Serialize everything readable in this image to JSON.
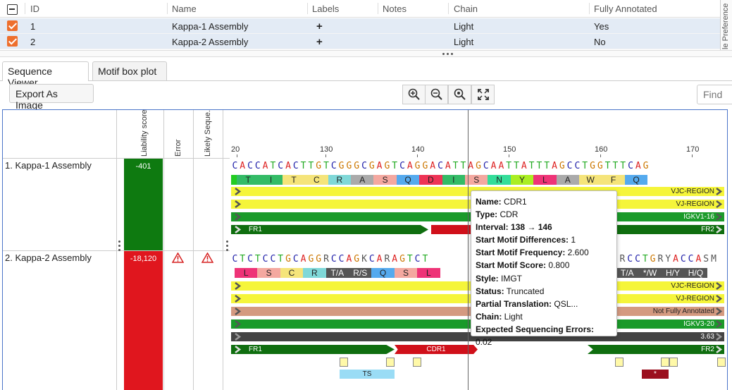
{
  "table": {
    "headers": [
      "ID",
      "Name",
      "Labels",
      "Notes",
      "Chain",
      "Fully Annotated"
    ],
    "rows": [
      {
        "id": "1",
        "name": "Kappa-1 Assembly",
        "labels": "+",
        "notes": "",
        "chain": "Light",
        "fully_annotated": "Yes"
      },
      {
        "id": "2",
        "name": "Kappa-2 Assembly",
        "labels": "+",
        "notes": "",
        "chain": "Light",
        "fully_annotated": "No"
      }
    ]
  },
  "sidebar_label": "le Preference",
  "tabs": [
    {
      "label": "Sequence Viewer",
      "active": true
    },
    {
      "label": "Motif box plot",
      "active": false
    }
  ],
  "toolbar": {
    "export_label": "Export As Image",
    "find_placeholder": "Find",
    "zoom_icons": [
      "zoom-in-icon",
      "zoom-out-icon",
      "zoom-fit-icon",
      "fullscreen-icon"
    ]
  },
  "viewer": {
    "columns": [
      "Liability score",
      "Error",
      "Likely Seque..."
    ],
    "ruler": [
      "20",
      "130",
      "140",
      "150",
      "160",
      "170"
    ],
    "sequences": [
      {
        "name": "1. Kappa-1 Assembly",
        "liability": "-401",
        "liability_color": "#0e7a10",
        "nucleotides": "CACCATCACTTGTCGGGCGAGTCAGGACATTAGCAATTATTTAGCCTGGTTTCAG",
        "aminoacids": [
          {
            "a": "",
            "c": "#22cc22"
          },
          {
            "a": "T",
            "c": "#33bb66"
          },
          {
            "a": "I",
            "c": "#33bb66"
          },
          {
            "a": "T",
            "c": "#f5e47a"
          },
          {
            "a": "C",
            "c": "#f5e47a"
          },
          {
            "a": "R",
            "c": "#7fd8d8"
          },
          {
            "a": "A",
            "c": "#aaaaaa"
          },
          {
            "a": "S",
            "c": "#f4a8a0"
          },
          {
            "a": "Q",
            "c": "#55aaee"
          },
          {
            "a": "D",
            "c": "#ee3355"
          },
          {
            "a": "I",
            "c": "#33bb66"
          },
          {
            "a": "S",
            "c": "#f4a8a0"
          },
          {
            "a": "N",
            "c": "#33dd99"
          },
          {
            "a": "Y",
            "c": "#aaee22"
          },
          {
            "a": "L",
            "c": "#ee3377"
          },
          {
            "a": "A",
            "c": "#aaaaaa"
          },
          {
            "a": "W",
            "c": "#f5e47a"
          },
          {
            "a": "F",
            "c": "#f5e47a"
          },
          {
            "a": "Q",
            "c": "#55aaee"
          }
        ],
        "tracks": [
          {
            "label": "VJC-REGION",
            "color": "#f5f53a",
            "left_label": ""
          },
          {
            "label": "VJ-REGION",
            "color": "#f5f53a",
            "left_label": ""
          },
          {
            "label": "IGKV1-16",
            "color": "#1a9a2a",
            "left_label": ""
          },
          {
            "label": "FR2",
            "color": "#0f6e0f",
            "left_label": "FR1"
          }
        ]
      },
      {
        "name": "2. Kappa-2 Assembly",
        "liability": "-18,120",
        "liability_color": "#e0161e",
        "nucleotides": "CTCTCCTGCAGGRCCAGKCARAGTCT",
        "nucleotides_right": "RCCTGRYACCASM",
        "aminoacids": [
          {
            "a": "L",
            "c": "#ee3377"
          },
          {
            "a": "S",
            "c": "#f4a8a0"
          },
          {
            "a": "C",
            "c": "#f5e47a"
          },
          {
            "a": "R",
            "c": "#7fd8d8"
          },
          {
            "a": "T/A",
            "c": "#555555"
          },
          {
            "a": "R/S",
            "c": "#555555"
          },
          {
            "a": "Q",
            "c": "#55aaee"
          },
          {
            "a": "S",
            "c": "#f4a8a0"
          },
          {
            "a": "L",
            "c": "#ee3377"
          }
        ],
        "aminoacids_right": [
          "T/A",
          "*/W",
          "H/Y",
          "H/Q"
        ],
        "tracks": [
          {
            "label": "VJC-REGION",
            "color": "#f5f53a"
          },
          {
            "label": "VJ-REGION",
            "color": "#f5f53a"
          },
          {
            "label": "Not Fully Annotated",
            "color": "#d49a80"
          },
          {
            "label": "IGKV3-20",
            "color": "#1a9a2a"
          },
          {
            "label": "3.63",
            "color": "#444444"
          }
        ],
        "regions": {
          "fr1": "FR1",
          "cdr1": "CDR1",
          "fr2": "FR2"
        },
        "ts_label": "TS",
        "stop_label": "*"
      }
    ],
    "tooltip": [
      {
        "k": "Name:",
        "v": " CDR1"
      },
      {
        "k": "Type:",
        "v": " CDR"
      },
      {
        "k": "Interval:",
        "v": " 138 → 146",
        "bold_v": true
      },
      {
        "k": "Start Motif Differences:",
        "v": " 1"
      },
      {
        "k": "Start Motif Frequency:",
        "v": " 2.600"
      },
      {
        "k": "Start Motif Score:",
        "v": " 0.800"
      },
      {
        "k": "Style:",
        "v": " IMGT"
      },
      {
        "k": "Status:",
        "v": " Truncated"
      },
      {
        "k": "Partial Translation:",
        "v": " QSL..."
      },
      {
        "k": "Chain:",
        "v": " Light"
      },
      {
        "k": "Expected Sequencing Errors:",
        "v": " 0.02"
      }
    ]
  }
}
